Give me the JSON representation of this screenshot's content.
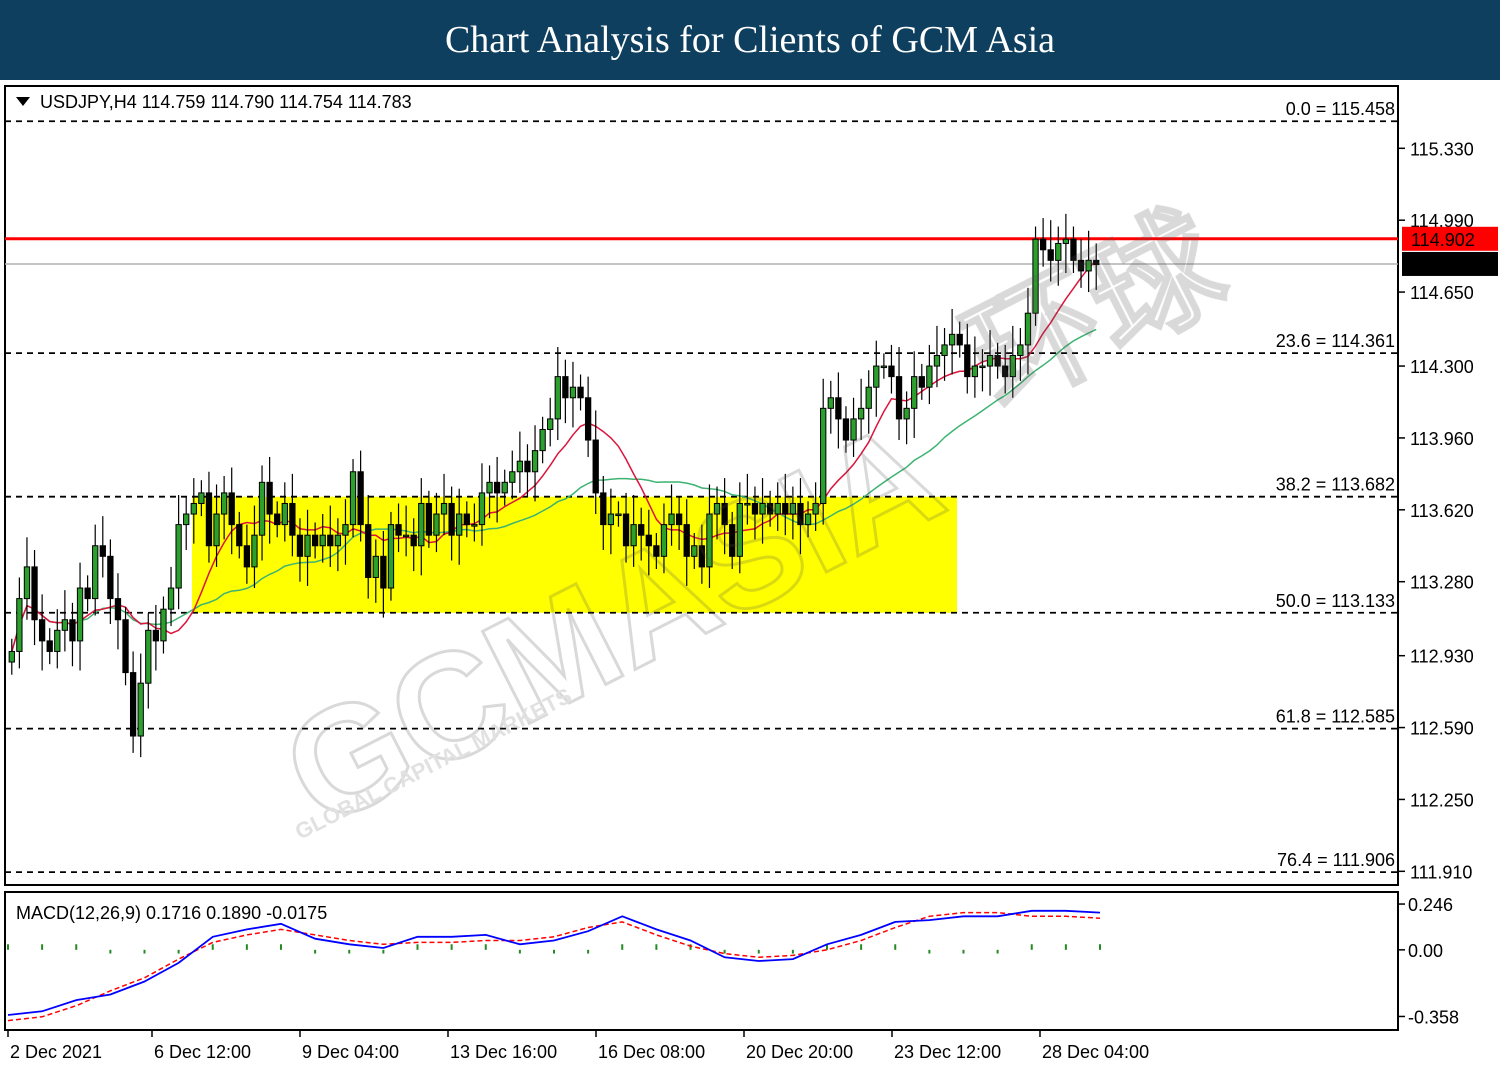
{
  "banner": {
    "title": "Chart Analysis for Clients of GCM Asia"
  },
  "watermark": {
    "brand": "GCMASIA",
    "brand_cn": "环球",
    "tagline": "GLOBAL CAPITAL MARKETS"
  },
  "chart_data": {
    "type": "candlestick",
    "symbol_header": "USDJPY,H4  114.759 114.790 114.754 114.783",
    "ylim": [
      111.85,
      115.62
    ],
    "y_ticks": [
      "115.330",
      "114.990",
      "114.650",
      "114.300",
      "113.960",
      "113.620",
      "113.280",
      "112.930",
      "112.590",
      "112.250",
      "111.910"
    ],
    "x_ticks": [
      "2 Dec 2021",
      "6 Dec 12:00",
      "9 Dec 04:00",
      "13 Dec 16:00",
      "16 Dec 08:00",
      "20 Dec 20:00",
      "23 Dec 12:00",
      "28 Dec 04:00"
    ],
    "resistance_line": {
      "value": 114.902,
      "label": "114.902",
      "color": "#ff0000"
    },
    "current_price": {
      "value": 114.783,
      "label": "114.783"
    },
    "fibonacci": [
      {
        "level": "0.0",
        "value": 115.458,
        "label": "0.0 = 115.458"
      },
      {
        "level": "23.6",
        "value": 114.361,
        "label": "23.6 = 114.361"
      },
      {
        "level": "38.2",
        "value": 113.682,
        "label": "38.2 = 113.682"
      },
      {
        "level": "50.0",
        "value": 113.133,
        "label": "50.0 = 113.133"
      },
      {
        "level": "61.8",
        "value": 112.585,
        "label": "61.8 = 112.585"
      },
      {
        "level": "76.4",
        "value": 111.906,
        "label": "76.4 = 111.906"
      }
    ],
    "zone": {
      "top": 113.682,
      "bottom": 113.133,
      "color": "#ffff00"
    },
    "close": [
      112.95,
      113.2,
      113.35,
      113.1,
      113.0,
      112.95,
      113.05,
      113.1,
      113.0,
      113.25,
      113.2,
      113.45,
      113.4,
      113.2,
      113.1,
      112.85,
      112.55,
      112.8,
      113.05,
      113.0,
      113.15,
      113.25,
      113.55,
      113.6,
      113.65,
      113.7,
      113.45,
      113.6,
      113.7,
      113.55,
      113.45,
      113.35,
      113.5,
      113.75,
      113.6,
      113.55,
      113.65,
      113.5,
      113.4,
      113.5,
      113.45,
      113.5,
      113.45,
      113.5,
      113.55,
      113.8,
      113.55,
      113.3,
      113.4,
      113.25,
      113.55,
      113.5,
      113.5,
      113.45,
      113.65,
      113.5,
      113.6,
      113.65,
      113.5,
      113.6,
      113.55,
      113.55,
      113.7,
      113.75,
      113.7,
      113.75,
      113.8,
      113.85,
      113.8,
      113.9,
      114.0,
      114.05,
      114.25,
      114.15,
      114.2,
      114.15,
      113.95,
      113.7,
      113.55,
      113.6,
      113.6,
      113.45,
      113.55,
      113.5,
      113.45,
      113.4,
      113.55,
      113.6,
      113.55,
      113.4,
      113.45,
      113.35,
      113.6,
      113.65,
      113.55,
      113.4,
      113.65,
      113.65,
      113.6,
      113.65,
      113.6,
      113.65,
      113.6,
      113.65,
      113.55,
      113.6,
      113.65,
      114.1,
      114.15,
      114.05,
      113.95,
      114.05,
      114.1,
      114.2,
      114.3,
      114.3,
      114.25,
      114.05,
      114.1,
      114.25,
      114.2,
      114.3,
      114.35,
      114.4,
      114.45,
      114.4,
      114.25,
      114.3,
      114.3,
      114.35,
      114.3,
      114.25,
      114.35,
      114.4,
      114.55,
      114.9,
      114.85,
      114.8,
      114.88,
      114.9,
      114.8,
      114.75,
      114.8,
      114.78
    ]
  },
  "macd": {
    "label": "MACD(12,26,9) 0.1716 0.1890 -0.0175",
    "y_ticks": [
      "0.246",
      "0.00",
      "-0.358"
    ],
    "ylim": [
      -0.42,
      0.3
    ],
    "signal": [
      -0.38,
      -0.36,
      -0.3,
      -0.22,
      -0.15,
      -0.05,
      0.04,
      0.08,
      0.11,
      0.08,
      0.05,
      0.03,
      0.04,
      0.04,
      0.05,
      0.05,
      0.07,
      0.12,
      0.15,
      0.08,
      0.02,
      -0.02,
      -0.04,
      -0.03,
      0.0,
      0.05,
      0.12,
      0.18,
      0.2,
      0.2,
      0.18,
      0.18,
      0.17
    ]
  }
}
